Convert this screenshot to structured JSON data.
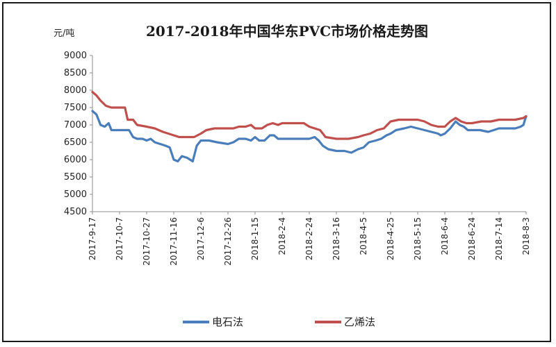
{
  "chart_data": {
    "type": "line",
    "title": "2017-2018年中国华东PVC市场价格走势图",
    "ylabel": "元/吨",
    "xlabel": "",
    "ylim": [
      4500,
      9000
    ],
    "yticks": [
      4500,
      5000,
      5500,
      6000,
      6500,
      7000,
      7500,
      8000,
      8500,
      9000
    ],
    "x_range": [
      "2017-9-17",
      "2018-8-3"
    ],
    "x_ticks": [
      "2017-9-17",
      "2017-10-7",
      "2017-10-27",
      "2017-11-16",
      "2017-12-6",
      "2017-12-26",
      "2018-1-15",
      "2018-2-4",
      "2018-2-24",
      "2018-3-16",
      "2018-4-5",
      "2018-4-25",
      "2018-5-15",
      "2018-6-4",
      "2018-6-24",
      "2018-7-14",
      "2018-8-3"
    ],
    "grid": false,
    "legend_position": "bottom",
    "series": [
      {
        "name": "电石法",
        "color": "#4a7ebb",
        "points": [
          [
            "2017-9-17",
            7400
          ],
          [
            "2017-9-20",
            7300
          ],
          [
            "2017-9-23",
            7000
          ],
          [
            "2017-9-26",
            6950
          ],
          [
            "2017-9-29",
            7050
          ],
          [
            "2017-10-1",
            6850
          ],
          [
            "2017-10-7",
            6850
          ],
          [
            "2017-10-14",
            6850
          ],
          [
            "2017-10-17",
            6650
          ],
          [
            "2017-10-20",
            6600
          ],
          [
            "2017-10-24",
            6600
          ],
          [
            "2017-10-27",
            6550
          ],
          [
            "2017-10-30",
            6600
          ],
          [
            "2017-11-2",
            6500
          ],
          [
            "2017-11-6",
            6450
          ],
          [
            "2017-11-10",
            6400
          ],
          [
            "2017-11-13",
            6350
          ],
          [
            "2017-11-16",
            6000
          ],
          [
            "2017-11-19",
            5950
          ],
          [
            "2017-11-22",
            6100
          ],
          [
            "2017-11-26",
            6050
          ],
          [
            "2017-11-30",
            5950
          ],
          [
            "2017-12-3",
            6400
          ],
          [
            "2017-12-6",
            6550
          ],
          [
            "2017-12-12",
            6550
          ],
          [
            "2017-12-18",
            6500
          ],
          [
            "2017-12-26",
            6450
          ],
          [
            "2017-12-30",
            6500
          ],
          [
            "2018-1-3",
            6600
          ],
          [
            "2018-1-8",
            6600
          ],
          [
            "2018-1-12",
            6550
          ],
          [
            "2018-1-15",
            6650
          ],
          [
            "2018-1-18",
            6550
          ],
          [
            "2018-1-22",
            6550
          ],
          [
            "2018-1-26",
            6700
          ],
          [
            "2018-1-29",
            6700
          ],
          [
            "2018-2-1",
            6600
          ],
          [
            "2018-2-8",
            6600
          ],
          [
            "2018-2-15",
            6600
          ],
          [
            "2018-2-20",
            6600
          ],
          [
            "2018-2-24",
            6600
          ],
          [
            "2018-2-28",
            6650
          ],
          [
            "2018-3-3",
            6550
          ],
          [
            "2018-3-6",
            6400
          ],
          [
            "2018-3-10",
            6300
          ],
          [
            "2018-3-16",
            6250
          ],
          [
            "2018-3-22",
            6250
          ],
          [
            "2018-3-27",
            6200
          ],
          [
            "2018-4-1",
            6300
          ],
          [
            "2018-4-5",
            6350
          ],
          [
            "2018-4-9",
            6500
          ],
          [
            "2018-4-14",
            6550
          ],
          [
            "2018-4-18",
            6600
          ],
          [
            "2018-4-22",
            6700
          ],
          [
            "2018-4-25",
            6750
          ],
          [
            "2018-4-29",
            6850
          ],
          [
            "2018-5-5",
            6900
          ],
          [
            "2018-5-10",
            6950
          ],
          [
            "2018-5-15",
            6900
          ],
          [
            "2018-5-20",
            6850
          ],
          [
            "2018-5-25",
            6800
          ],
          [
            "2018-5-30",
            6750
          ],
          [
            "2018-6-1",
            6700
          ],
          [
            "2018-6-4",
            6750
          ],
          [
            "2018-6-8",
            6900
          ],
          [
            "2018-6-12",
            7100
          ],
          [
            "2018-6-15",
            7000
          ],
          [
            "2018-6-18",
            6950
          ],
          [
            "2018-6-21",
            6850
          ],
          [
            "2018-6-24",
            6850
          ],
          [
            "2018-6-30",
            6850
          ],
          [
            "2018-7-6",
            6800
          ],
          [
            "2018-7-10",
            6850
          ],
          [
            "2018-7-14",
            6900
          ],
          [
            "2018-7-20",
            6900
          ],
          [
            "2018-7-26",
            6900
          ],
          [
            "2018-7-30",
            6950
          ],
          [
            "2018-8-1",
            7000
          ],
          [
            "2018-8-3",
            7250
          ]
        ]
      },
      {
        "name": "乙烯法",
        "color": "#c0504d",
        "points": [
          [
            "2017-9-17",
            7950
          ],
          [
            "2017-9-20",
            7850
          ],
          [
            "2017-9-23",
            7700
          ],
          [
            "2017-9-27",
            7550
          ],
          [
            "2017-10-1",
            7500
          ],
          [
            "2017-10-7",
            7500
          ],
          [
            "2017-10-11",
            7500
          ],
          [
            "2017-10-13",
            7150
          ],
          [
            "2017-10-17",
            7150
          ],
          [
            "2017-10-20",
            7000
          ],
          [
            "2017-10-27",
            6950
          ],
          [
            "2017-11-2",
            6900
          ],
          [
            "2017-11-8",
            6800
          ],
          [
            "2017-11-12",
            6750
          ],
          [
            "2017-11-16",
            6700
          ],
          [
            "2017-11-20",
            6650
          ],
          [
            "2017-11-26",
            6650
          ],
          [
            "2017-12-1",
            6650
          ],
          [
            "2017-12-6",
            6750
          ],
          [
            "2017-12-10",
            6850
          ],
          [
            "2017-12-16",
            6900
          ],
          [
            "2017-12-26",
            6900
          ],
          [
            "2017-12-30",
            6900
          ],
          [
            "2018-1-3",
            6950
          ],
          [
            "2018-1-8",
            6950
          ],
          [
            "2018-1-12",
            7000
          ],
          [
            "2018-1-15",
            6900
          ],
          [
            "2018-1-20",
            6900
          ],
          [
            "2018-1-24",
            7000
          ],
          [
            "2018-1-28",
            7050
          ],
          [
            "2018-2-1",
            7000
          ],
          [
            "2018-2-4",
            7050
          ],
          [
            "2018-2-12",
            7050
          ],
          [
            "2018-2-20",
            7050
          ],
          [
            "2018-2-24",
            6950
          ],
          [
            "2018-2-28",
            6900
          ],
          [
            "2018-3-4",
            6850
          ],
          [
            "2018-3-8",
            6650
          ],
          [
            "2018-3-16",
            6600
          ],
          [
            "2018-3-25",
            6600
          ],
          [
            "2018-4-1",
            6650
          ],
          [
            "2018-4-5",
            6700
          ],
          [
            "2018-4-10",
            6750
          ],
          [
            "2018-4-15",
            6850
          ],
          [
            "2018-4-20",
            6900
          ],
          [
            "2018-4-25",
            7100
          ],
          [
            "2018-5-1",
            7150
          ],
          [
            "2018-5-7",
            7150
          ],
          [
            "2018-5-15",
            7150
          ],
          [
            "2018-5-20",
            7100
          ],
          [
            "2018-5-25",
            7000
          ],
          [
            "2018-5-30",
            6950
          ],
          [
            "2018-6-4",
            6950
          ],
          [
            "2018-6-8",
            7100
          ],
          [
            "2018-6-12",
            7200
          ],
          [
            "2018-6-16",
            7100
          ],
          [
            "2018-6-20",
            7050
          ],
          [
            "2018-6-24",
            7050
          ],
          [
            "2018-7-1",
            7100
          ],
          [
            "2018-7-8",
            7100
          ],
          [
            "2018-7-14",
            7150
          ],
          [
            "2018-7-20",
            7150
          ],
          [
            "2018-7-26",
            7150
          ],
          [
            "2018-8-1",
            7200
          ],
          [
            "2018-8-3",
            7250
          ]
        ]
      }
    ]
  }
}
